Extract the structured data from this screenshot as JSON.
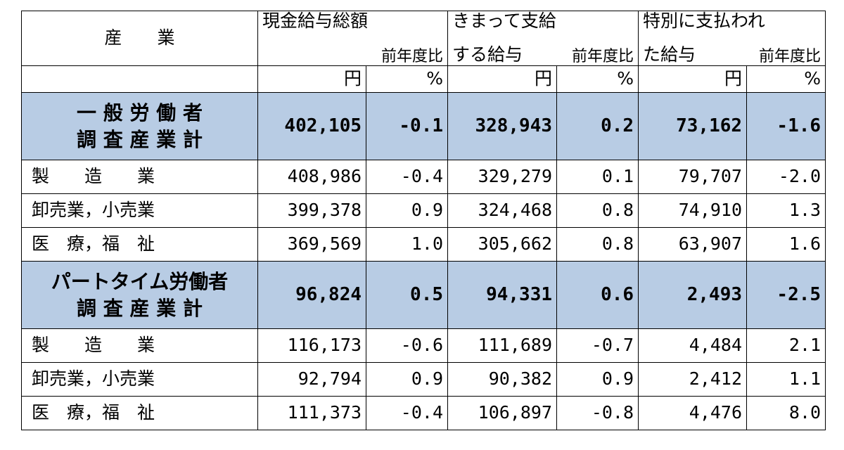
{
  "header": {
    "industry": "産　　業",
    "cash_total": "現金給与総額",
    "contract_line1": "きまって支給",
    "contract_line2": "する給与",
    "special_line1": "特別に支払われ",
    "special_line2": "た給与",
    "yoy": "前年度比",
    "unit_yen": "円",
    "unit_pct": "%"
  },
  "groups": [
    {
      "name_line1": "一 般 労 働 者",
      "name_line2": "調 査 産 業 計",
      "total": [
        "402,105",
        "-0.1",
        "328,943",
        "0.2",
        "73,162",
        "-1.6"
      ],
      "rows": [
        {
          "name": "製　　造　　業",
          "values": [
            "408,986",
            "-0.4",
            "329,279",
            "0.1",
            "79,707",
            "-2.0"
          ]
        },
        {
          "name": "卸売業，小売業",
          "values": [
            "399,378",
            "0.9",
            "324,468",
            "0.8",
            "74,910",
            "1.3"
          ]
        },
        {
          "name": "医　療，福　祉",
          "values": [
            "369,569",
            "1.0",
            "305,662",
            "0.8",
            "63,907",
            "1.6"
          ]
        }
      ]
    },
    {
      "name_line1": "パートタイム労働者",
      "name_line2": "調 査 産 業 計",
      "total": [
        "96,824",
        "0.5",
        "94,331",
        "0.6",
        "2,493",
        "-2.5"
      ],
      "rows": [
        {
          "name": "製　　造　　業",
          "values": [
            "116,173",
            "-0.6",
            "111,689",
            "-0.7",
            "4,484",
            "2.1"
          ]
        },
        {
          "name": "卸売業，小売業",
          "values": [
            "92,794",
            "0.9",
            "90,382",
            "0.9",
            "2,412",
            "1.1"
          ]
        },
        {
          "name": "医　療，福　祉",
          "values": [
            "111,373",
            "-0.4",
            "106,897",
            "-0.8",
            "4,476",
            "8.0"
          ]
        }
      ]
    }
  ],
  "colors": {
    "total_row_bg": "#b8cce4"
  }
}
